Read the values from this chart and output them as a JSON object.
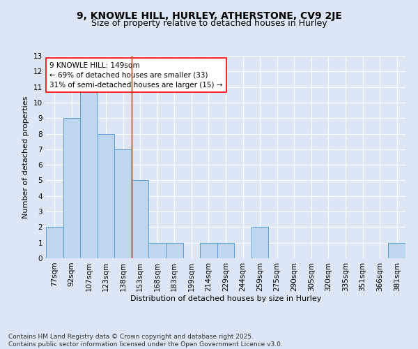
{
  "title": "9, KNOWLE HILL, HURLEY, ATHERSTONE, CV9 2JE",
  "subtitle": "Size of property relative to detached houses in Hurley",
  "xlabel": "Distribution of detached houses by size in Hurley",
  "ylabel": "Number of detached properties",
  "categories": [
    "77sqm",
    "92sqm",
    "107sqm",
    "123sqm",
    "138sqm",
    "153sqm",
    "168sqm",
    "183sqm",
    "199sqm",
    "214sqm",
    "229sqm",
    "244sqm",
    "259sqm",
    "275sqm",
    "290sqm",
    "305sqm",
    "320sqm",
    "335sqm",
    "351sqm",
    "366sqm",
    "381sqm"
  ],
  "values": [
    2,
    9,
    11,
    8,
    7,
    5,
    1,
    1,
    0,
    1,
    1,
    0,
    2,
    0,
    0,
    0,
    0,
    0,
    0,
    0,
    1
  ],
  "bar_color": "#bdd7ee",
  "bar_edge_color": "#5b9bd5",
  "reference_line_x": 4.5,
  "annotation_line1": "9 KNOWLE HILL: 149sqm",
  "annotation_line2": "← 69% of detached houses are smaller (33)",
  "annotation_line3": "31% of semi-detached houses are larger (15) →",
  "annotation_box_color": "white",
  "annotation_box_edge_color": "red",
  "ref_line_color": "red",
  "ylim": [
    0,
    13
  ],
  "yticks": [
    0,
    1,
    2,
    3,
    4,
    5,
    6,
    7,
    8,
    9,
    10,
    11,
    12,
    13
  ],
  "plot_bg_color": "#dce6f5",
  "fig_bg_color": "#dce6f5",
  "footer_text": "Contains HM Land Registry data © Crown copyright and database right 2025.\nContains public sector information licensed under the Open Government Licence v3.0.",
  "title_fontsize": 10,
  "subtitle_fontsize": 9,
  "axis_label_fontsize": 8,
  "tick_fontsize": 7.5,
  "annotation_fontsize": 7.5,
  "footer_fontsize": 6.5,
  "ylabel_fontsize": 8
}
